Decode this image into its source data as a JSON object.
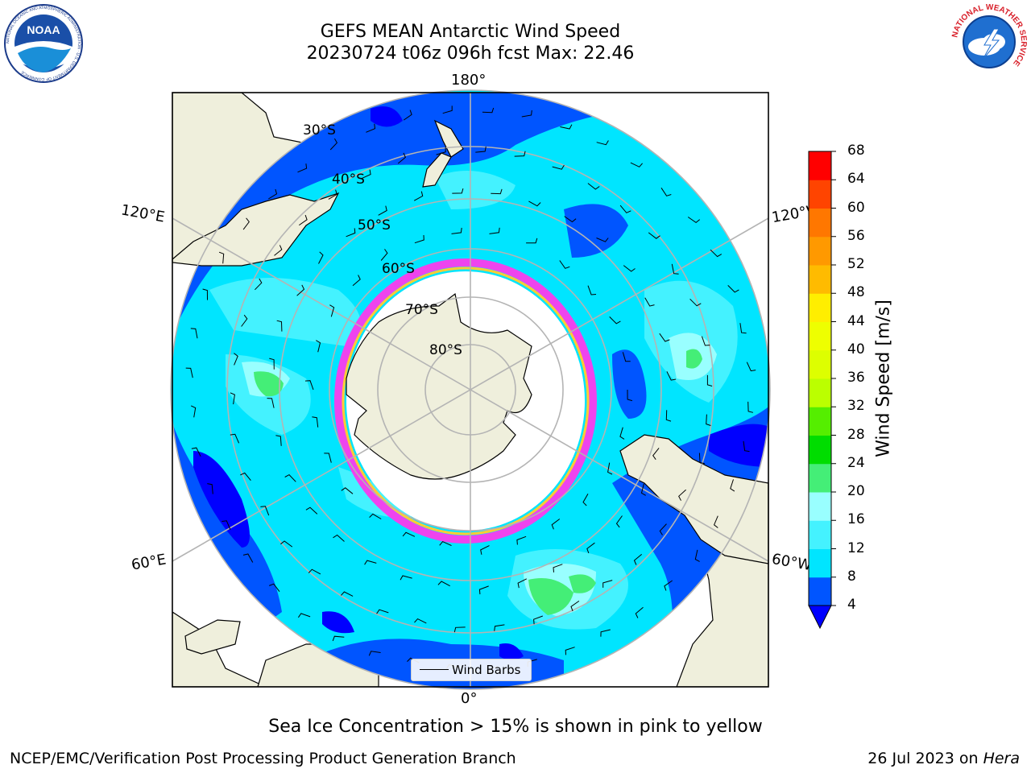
{
  "title": {
    "line1": "GEFS MEAN Antarctic Wind Speed",
    "line2": "20230724 t06z 096h fcst   Max: 22.46"
  },
  "longitude_labels": {
    "top": "180°",
    "bottom": "0°",
    "upper_left": "120°E",
    "upper_right": "120°W",
    "lower_left": "60°E",
    "lower_right": "60°W"
  },
  "latitude_labels": [
    "30°S",
    "40°S",
    "50°S",
    "60°S",
    "70°S",
    "80°S"
  ],
  "legend": {
    "label": "Wind Barbs"
  },
  "colorbar": {
    "label": "Wind Speed [m/s]",
    "ticks": [
      "4",
      "8",
      "12",
      "16",
      "20",
      "24",
      "28",
      "32",
      "36",
      "40",
      "44",
      "48",
      "52",
      "56",
      "60",
      "64",
      "68"
    ],
    "colors": [
      "#0055ff",
      "#00e5ff",
      "#44f2ff",
      "#99ffff",
      "#44ee77",
      "#00dd00",
      "#55ee00",
      "#bbff00",
      "#ddff00",
      "#eeff00",
      "#ffee00",
      "#ffbb00",
      "#ff9900",
      "#ff7700",
      "#ff4400",
      "#ff0000"
    ],
    "under_color": "#0000ff"
  },
  "caption": "Sea Ice Concentration > 15% is shown in pink to yellow",
  "credit": "NCEP/EMC/Verification Post Processing Product Generation Branch",
  "timestamp": {
    "date": "26 Jul 2023 on",
    "host": "Hera"
  },
  "logos": {
    "left": {
      "name": "NOAA",
      "text": "NOAA",
      "ring_text": "NATIONAL OCEANIC AND ATMOSPHERIC ADMINISTRATION · U.S. DEPARTMENT OF COMMERCE"
    },
    "right": {
      "name": "National Weather Service",
      "ring_text": "NATIONAL WEATHER SERVICE"
    }
  }
}
